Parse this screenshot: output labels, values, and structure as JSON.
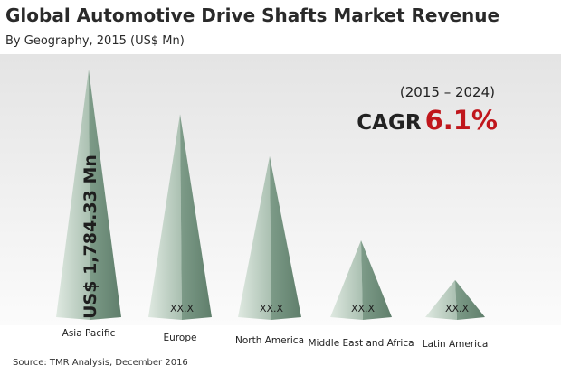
{
  "title": "Global Automotive Drive Shafts Market Revenue",
  "subtitle": "By Geography, 2015 (US$ Mn)",
  "period": "(2015 – 2024)",
  "cagr_label": "CAGR",
  "cagr_value": "6.1%",
  "source": "Source: TMR Analysis, December 2016",
  "colors": {
    "pyramid_light": "#c9d8cc",
    "pyramid_dark": "#6f8f7c",
    "cagr_accent": "#c0161c"
  },
  "chart_data": {
    "type": "bar",
    "style": "pyramid",
    "categories": [
      "Asia Pacific",
      "Europe",
      "North America",
      "Middle East and Africa",
      "Latin America"
    ],
    "values": [
      1784.33,
      null,
      null,
      null,
      null
    ],
    "value_labels": [
      "US$ 1,784.33 Mn",
      "XX.X",
      "XX.X",
      "XX.X",
      "XX.X"
    ],
    "relative_heights": [
      1.0,
      0.82,
      0.65,
      0.31,
      0.15
    ],
    "grid": false,
    "legend": "none"
  }
}
